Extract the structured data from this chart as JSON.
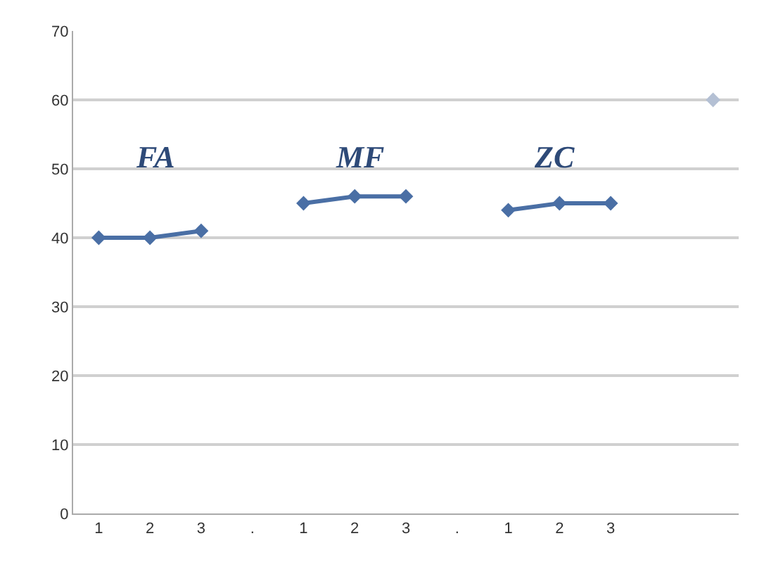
{
  "chart_data": {
    "type": "line",
    "categories": [
      "1",
      "2",
      "3",
      ".",
      "1",
      "2",
      "3",
      ".",
      "1",
      "2",
      "3",
      null,
      null
    ],
    "series": [
      {
        "color": "#4a6fa5",
        "values": [
          40,
          40,
          41,
          null,
          45,
          46,
          46,
          null,
          44,
          45,
          45,
          null,
          null
        ]
      },
      {
        "type": "scatter",
        "color": "#b4c0d4",
        "values": [
          null,
          null,
          null,
          null,
          null,
          null,
          null,
          null,
          null,
          null,
          null,
          null,
          60
        ]
      }
    ],
    "ylim": [
      0,
      70
    ],
    "yticks": [
      0,
      10,
      20,
      30,
      40,
      50,
      60,
      70
    ],
    "annotations": [
      "FA",
      "MF",
      "ZC"
    ],
    "grid": "y",
    "marker": "diamond",
    "line_style": "solid"
  }
}
